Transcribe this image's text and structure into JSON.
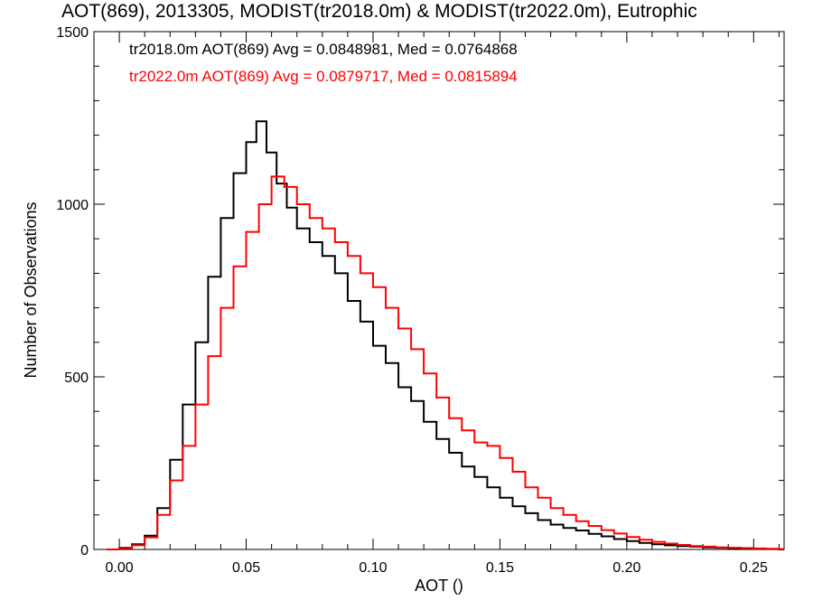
{
  "chart_data": {
    "type": "histogram-step",
    "title": "AOT(869), 2013305, MODIST(tr2018.0m) & MODIST(tr2022.0m), Eutrophic",
    "xlabel": "AOT ()",
    "ylabel": "Number of Observations",
    "xlim": [
      -0.01,
      0.262
    ],
    "ylim": [
      0,
      1500
    ],
    "xticks": [
      0.0,
      0.05,
      0.1,
      0.15,
      0.2,
      0.25
    ],
    "xtick_labels": [
      "0.00",
      "0.05",
      "0.10",
      "0.15",
      "0.20",
      "0.25"
    ],
    "yticks": [
      0,
      500,
      1000,
      1500
    ],
    "ytick_labels": [
      "0",
      "500",
      "1000",
      "1500"
    ],
    "grid": false,
    "annotations": [
      {
        "text": "tr2018.0m AOT(869) Avg = 0.0848981, Med = 0.0764868",
        "color": "#000000"
      },
      {
        "text": "tr2022.0m AOT(869) Avg = 0.0879717, Med = 0.0815894",
        "color": "#ff0000"
      }
    ],
    "series": [
      {
        "color": "#000000",
        "x": [
          -0.005,
          0.0,
          0.005,
          0.01,
          0.015,
          0.02,
          0.025,
          0.03,
          0.035,
          0.04,
          0.045,
          0.05,
          0.054,
          0.058,
          0.062,
          0.066,
          0.07,
          0.075,
          0.08,
          0.085,
          0.09,
          0.095,
          0.1,
          0.105,
          0.11,
          0.115,
          0.12,
          0.125,
          0.13,
          0.135,
          0.14,
          0.145,
          0.15,
          0.155,
          0.16,
          0.165,
          0.17,
          0.175,
          0.18,
          0.185,
          0.19,
          0.195,
          0.2,
          0.205,
          0.21,
          0.215,
          0.22,
          0.225,
          0.23,
          0.235,
          0.24,
          0.245,
          0.25,
          0.255,
          0.26
        ],
        "y": [
          0,
          5,
          15,
          40,
          120,
          260,
          420,
          600,
          790,
          960,
          1090,
          1180,
          1240,
          1150,
          1060,
          990,
          930,
          890,
          850,
          800,
          720,
          660,
          590,
          540,
          470,
          430,
          370,
          320,
          280,
          240,
          210,
          180,
          150,
          125,
          105,
          85,
          72,
          62,
          55,
          45,
          38,
          30,
          24,
          19,
          15,
          12,
          10,
          8,
          6,
          5,
          4,
          3,
          2,
          1,
          0
        ]
      },
      {
        "color": "#ff0000",
        "x": [
          -0.005,
          0.0,
          0.005,
          0.01,
          0.015,
          0.02,
          0.025,
          0.03,
          0.035,
          0.04,
          0.045,
          0.05,
          0.055,
          0.06,
          0.065,
          0.07,
          0.075,
          0.08,
          0.085,
          0.09,
          0.095,
          0.1,
          0.105,
          0.11,
          0.115,
          0.12,
          0.125,
          0.13,
          0.135,
          0.14,
          0.145,
          0.15,
          0.155,
          0.16,
          0.165,
          0.17,
          0.175,
          0.18,
          0.185,
          0.19,
          0.195,
          0.2,
          0.205,
          0.21,
          0.215,
          0.22,
          0.225,
          0.23,
          0.235,
          0.24,
          0.245,
          0.25,
          0.255,
          0.26
        ],
        "y": [
          0,
          4,
          12,
          35,
          100,
          200,
          300,
          420,
          560,
          700,
          820,
          920,
          1000,
          1080,
          1050,
          1000,
          960,
          930,
          890,
          850,
          800,
          760,
          700,
          640,
          580,
          510,
          440,
          380,
          345,
          310,
          300,
          265,
          225,
          180,
          150,
          120,
          100,
          82,
          68,
          56,
          46,
          36,
          28,
          22,
          17,
          13,
          10,
          8,
          6,
          5,
          4,
          3,
          2,
          1
        ]
      }
    ]
  }
}
